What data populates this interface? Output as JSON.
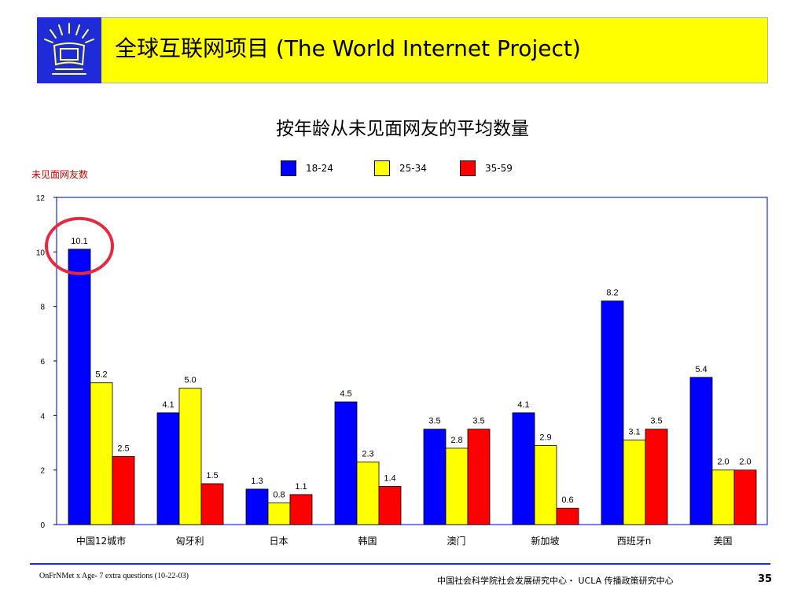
{
  "header": {
    "title": "全球互联网项目 (The World Internet Project)",
    "banner_color": "#ffff00",
    "logo_color": "#1f2ad8"
  },
  "chart_data": {
    "type": "bar",
    "title": "按年龄从未见面网友的平均数量",
    "ylabel": "未见面网友数",
    "xlabel": "",
    "ylim": [
      0,
      12
    ],
    "yticks": [
      0,
      2,
      4,
      6,
      8,
      10,
      12
    ],
    "categories": [
      "中国12城市",
      "匈牙利",
      "日本",
      "韩国",
      "澳门",
      "新加坡",
      "西班牙n",
      "美国"
    ],
    "series": [
      {
        "name": "18-24",
        "color": "#0000ff",
        "values": [
          10.1,
          4.1,
          1.3,
          4.5,
          3.5,
          4.1,
          8.2,
          5.4
        ]
      },
      {
        "name": "25-34",
        "color": "#ffff00",
        "values": [
          5.2,
          5.0,
          0.8,
          2.3,
          2.8,
          2.9,
          3.1,
          2.0
        ]
      },
      {
        "name": "35-59",
        "color": "#ff0000",
        "values": [
          2.5,
          1.5,
          1.1,
          1.4,
          3.5,
          0.6,
          3.5,
          2.0
        ]
      }
    ],
    "legend_position": "top",
    "grid": false,
    "highlight": {
      "category": "中国12城市",
      "series": "18-24",
      "color": "#e8283c"
    }
  },
  "footer": {
    "left": "OnFrNMet x Age- 7 extra questions (10-22-03)",
    "center": "中国社会科学院社会发展研究中心・ UCLA 传播政策研究中心",
    "page": "35"
  }
}
